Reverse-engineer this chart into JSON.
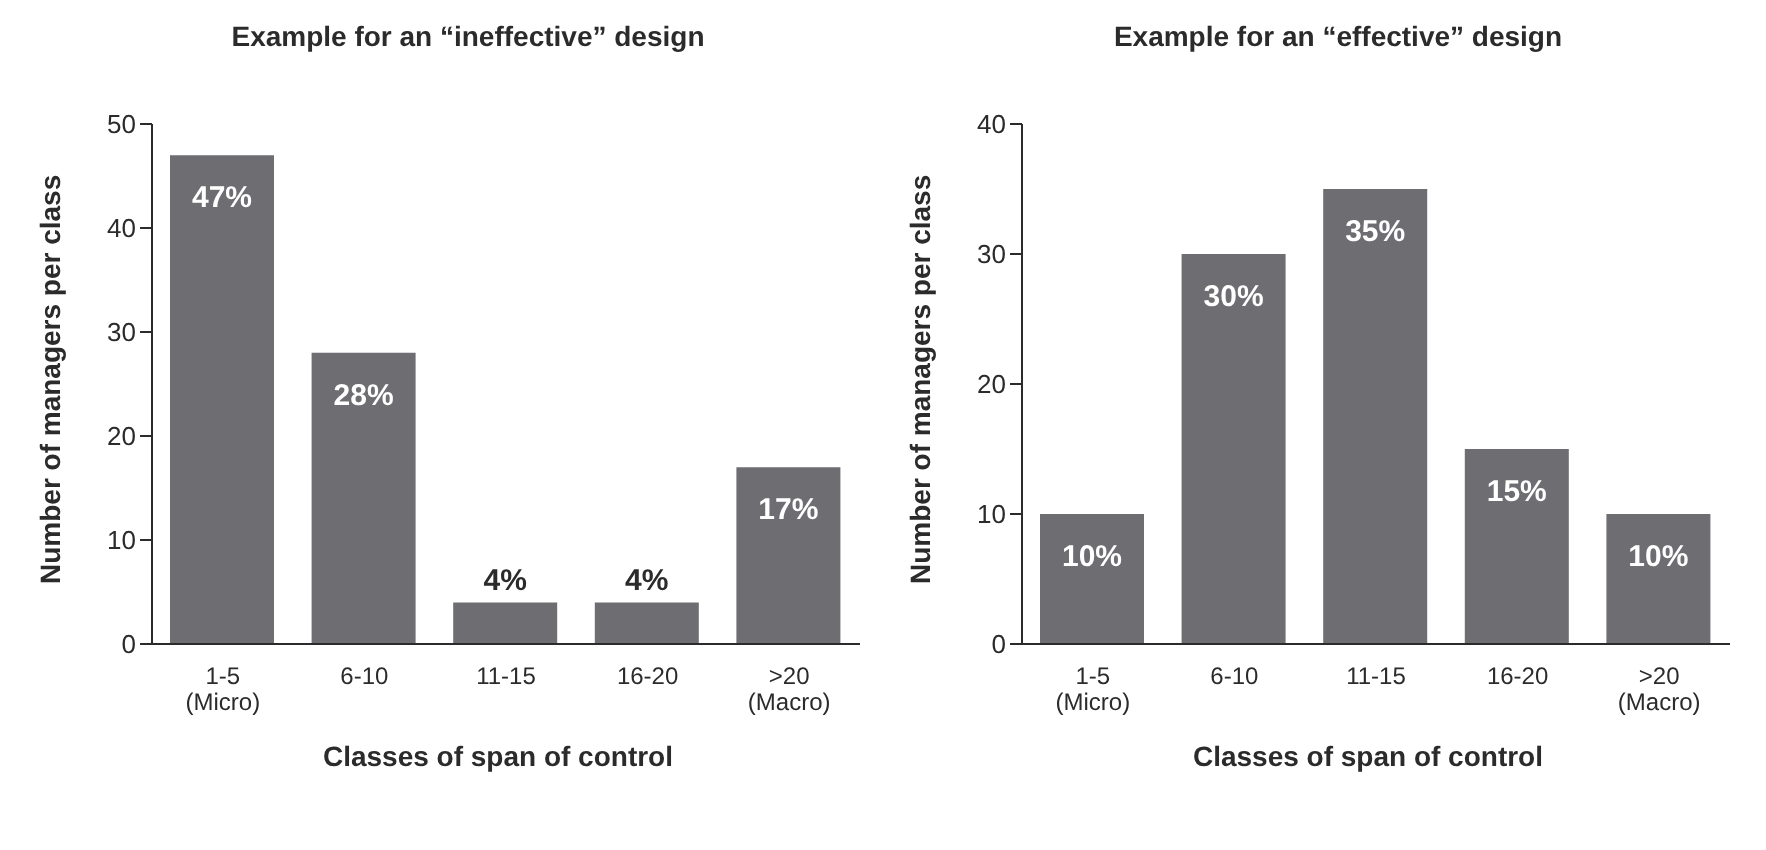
{
  "chart_data": [
    {
      "type": "bar",
      "title": "Example for an “ineffective” design",
      "xlabel": "Classes of span of control",
      "ylabel": "Number of managers per class",
      "categories": [
        "1-5\n(Micro)",
        "6-10",
        "11-15",
        "16-20",
        ">20\n(Macro)"
      ],
      "values": [
        47,
        28,
        4,
        4,
        17
      ],
      "value_labels": [
        "47%",
        "28%",
        "4%",
        "4%",
        "17%"
      ],
      "color": "#6d6d72",
      "ylim": [
        0,
        50
      ],
      "yticks": [
        0,
        10,
        20,
        30,
        40,
        50
      ],
      "grid": false,
      "legend": false
    },
    {
      "type": "bar",
      "title": "Example for an “effective” design",
      "xlabel": "Classes of span of control",
      "ylabel": "Number of managers per class",
      "categories": [
        "1-5\n(Micro)",
        "6-10",
        "11-15",
        "16-20",
        ">20\n(Macro)"
      ],
      "values": [
        10,
        30,
        35,
        15,
        10
      ],
      "value_labels": [
        "10%",
        "30%",
        "35%",
        "15%",
        "10%"
      ],
      "color": "#6d6d72",
      "ylim": [
        0,
        40
      ],
      "yticks": [
        0,
        10,
        20,
        30,
        40
      ],
      "grid": false,
      "legend": false
    }
  ]
}
